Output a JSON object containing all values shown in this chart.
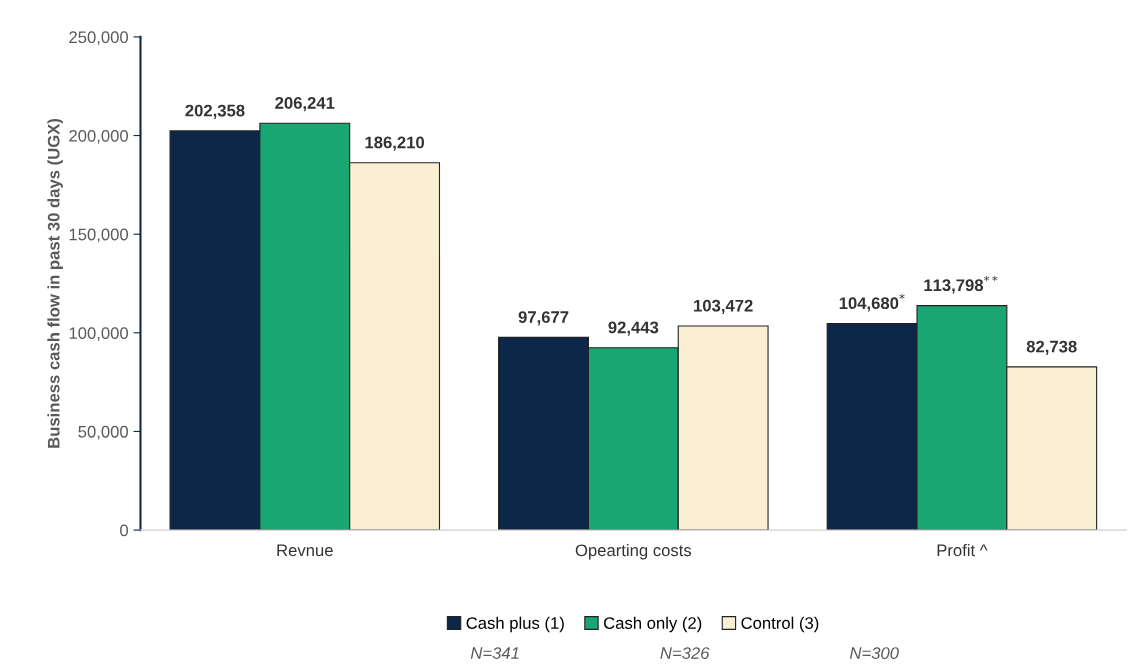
{
  "chart_data": {
    "type": "bar",
    "ylabel": "Business cash flow in past 30 days (UGX)",
    "categories": [
      "Revnue",
      "Opearting costs",
      "Profit ^"
    ],
    "series": [
      {
        "name": "Cash plus (1)",
        "color": "#0c2747",
        "values": [
          202358,
          97677,
          104680
        ],
        "value_labels": [
          "202,358",
          "97,677",
          "104,680$^{*}$"
        ]
      },
      {
        "name": "Cash only (2)",
        "color": "#1aa673",
        "values": [
          206241,
          92443,
          113798
        ],
        "value_labels": [
          "206,241",
          "92,443",
          "113,798$^{**}$"
        ]
      },
      {
        "name": "Control (3)",
        "color": "#faefd2",
        "values": [
          186210,
          103472,
          82738
        ],
        "value_labels": [
          "186,210",
          "103,472",
          "82,738"
        ]
      }
    ],
    "ylim": [
      0,
      250000
    ],
    "yticks": [
      {
        "value": 0,
        "label": "0"
      },
      {
        "value": 50000,
        "label": "50,000"
      },
      {
        "value": 100000,
        "label": "100,000"
      },
      {
        "value": 150000,
        "label": "150,000"
      },
      {
        "value": 200000,
        "label": "200,000"
      },
      {
        "value": 250000,
        "label": "250,000"
      }
    ],
    "legend": "bottom",
    "grid": false,
    "annotations": [
      "N=341",
      "N=326",
      "N=300"
    ]
  }
}
